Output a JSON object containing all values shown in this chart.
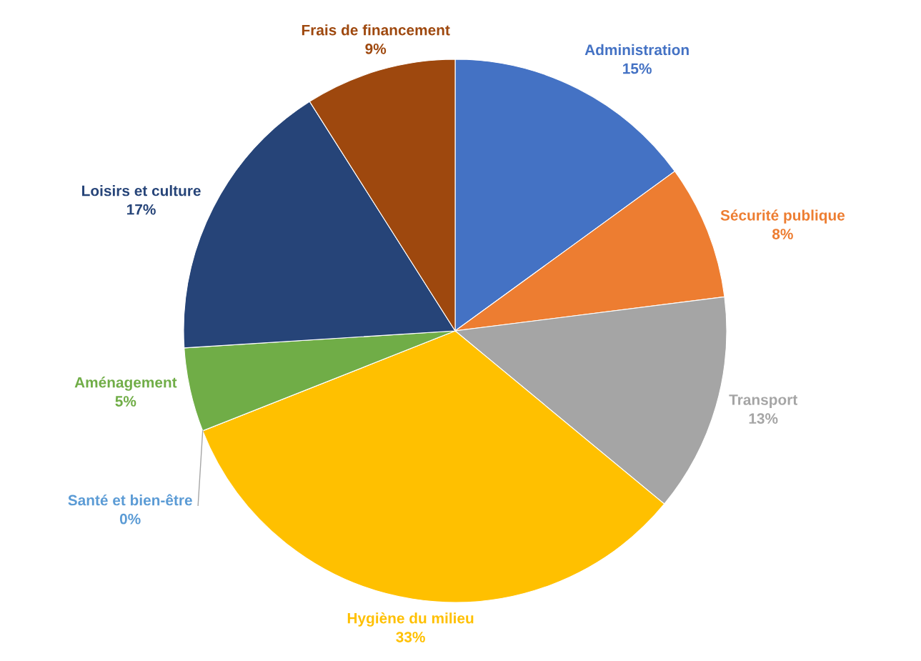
{
  "chart_data": {
    "type": "pie",
    "categories": [
      "Administration",
      "Sécurité publique",
      "Transport",
      "Hygiène du milieu",
      "Santé et bien-être",
      "Aménagement",
      "Loisirs et culture",
      "Frais de financement"
    ],
    "values": [
      15,
      8,
      13,
      33,
      0,
      5,
      17,
      9
    ],
    "value_labels": [
      "15%",
      "8%",
      "13%",
      "33%",
      "0%",
      "5%",
      "17%",
      "9%"
    ],
    "colors": [
      "#4472c4",
      "#ed7d31",
      "#a5a5a5",
      "#ffc000",
      "#5b9bd5",
      "#70ad47",
      "#264478",
      "#9e480e"
    ],
    "legend": false
  }
}
